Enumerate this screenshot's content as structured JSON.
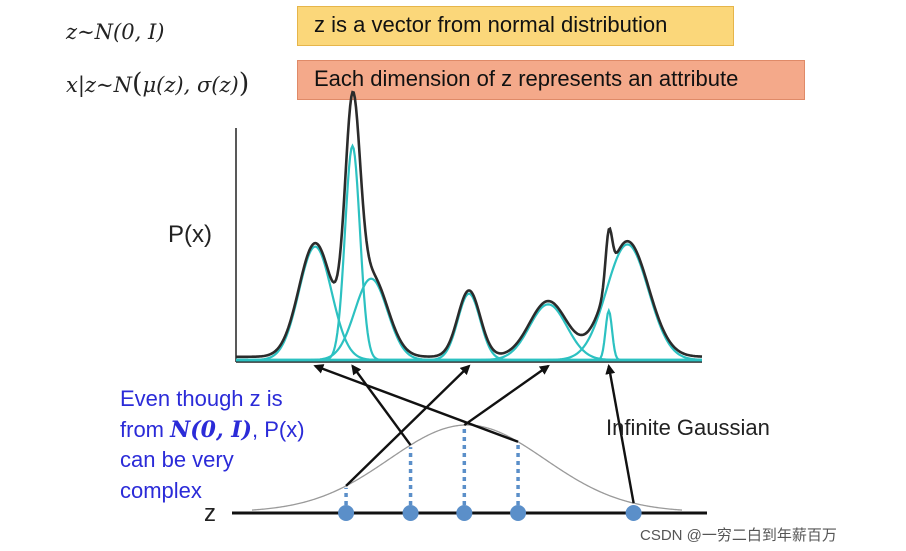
{
  "formulas": {
    "prior": "z∼N(0, I)",
    "likelihood_prefix": "x|z∼N",
    "likelihood_args": "μ(z), σ(z)"
  },
  "callouts": {
    "prior_note": "z is a vector from normal distribution",
    "attribute_note": "Each dimension of z represents an attribute"
  },
  "axis_labels": {
    "px": "P(x)",
    "z": "z"
  },
  "note": {
    "line1": "Even though z is",
    "line2_prefix": "from ",
    "line2_math": "N(0, I)",
    "line2_suffix": ", P(x)",
    "line3": "can be very",
    "line4": "complex"
  },
  "gauss_label": "Infinite Gaussian",
  "watermark": "CSDN @一穷二白到年薪百万",
  "colors": {
    "mixture_curve": "#2b2b2b",
    "component_curve": "#2cc1c1",
    "sample_point": "#5b8fc9",
    "dotted_line": "#5b8fc9",
    "prior_curve": "#9a9a9a",
    "callout_yellow": "#fbd77a",
    "callout_orange": "#f4a98a",
    "note_text": "#2b2bd8"
  },
  "mixture": {
    "components": [
      {
        "mu": 0.17,
        "sigma": 0.035,
        "weight": 0.53
      },
      {
        "mu": 0.25,
        "sigma": 0.016,
        "weight": 1.0
      },
      {
        "mu": 0.29,
        "sigma": 0.035,
        "weight": 0.38
      },
      {
        "mu": 0.5,
        "sigma": 0.024,
        "weight": 0.31
      },
      {
        "mu": 0.67,
        "sigma": 0.04,
        "weight": 0.26
      },
      {
        "mu": 0.8,
        "sigma": 0.007,
        "weight": 0.23
      },
      {
        "mu": 0.84,
        "sigma": 0.045,
        "weight": 0.54
      }
    ]
  },
  "samples": {
    "z": [
      -2.25,
      -1.05,
      -0.05,
      0.95,
      3.1
    ],
    "targets": [
      0.5,
      0.25,
      0.67,
      0.17,
      0.8
    ]
  }
}
